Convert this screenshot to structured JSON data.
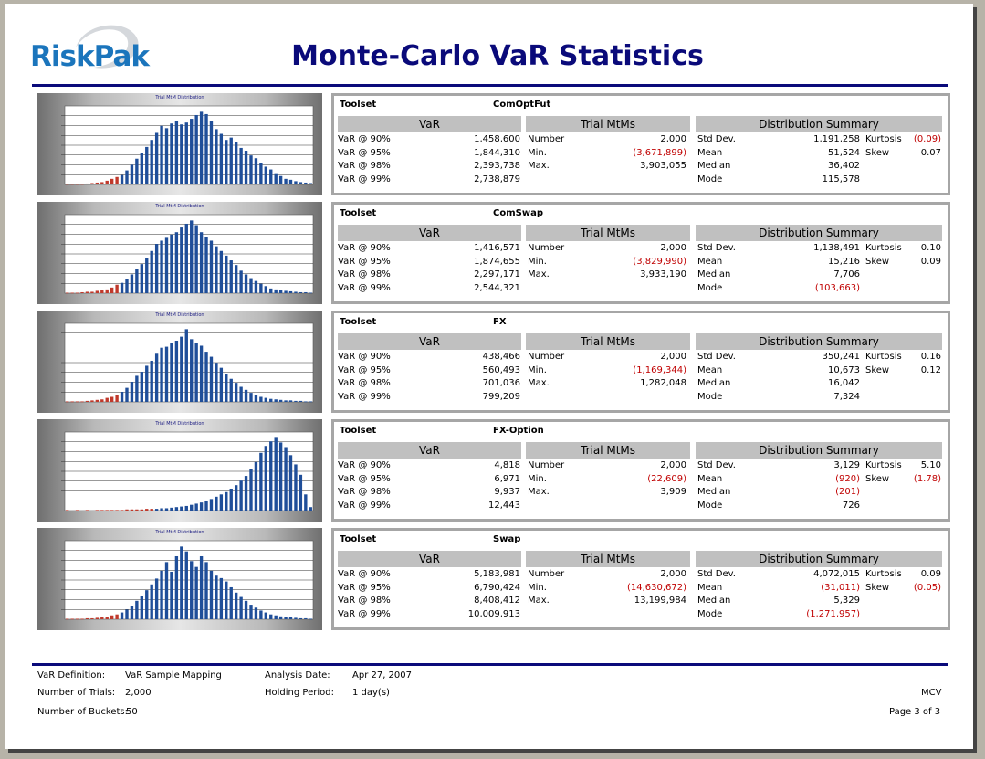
{
  "header": {
    "logo_text": "RiskPak",
    "title": "Monte-Carlo VaR Statistics"
  },
  "sections": [
    {
      "chart_title": "Trial MtM Distribution",
      "toolset_label": "Toolset",
      "toolset_name": "ComOptFut",
      "headers": {
        "var": "VaR",
        "trial": "Trial MtMs",
        "dist": "Distribution Summary"
      },
      "var_rows": [
        {
          "label": "VaR @ 90%",
          "value": "1,458,600"
        },
        {
          "label": "VaR @ 95%",
          "value": "1,844,310"
        },
        {
          "label": "VaR @ 98%",
          "value": "2,393,738"
        },
        {
          "label": "VaR @ 99%",
          "value": "2,738,879"
        }
      ],
      "trial_rows": [
        {
          "label": "Number",
          "value": "2,000",
          "neg": false
        },
        {
          "label": "Min.",
          "value": "(3,671,899)",
          "neg": true
        },
        {
          "label": "Max.",
          "value": "3,903,055",
          "neg": false
        }
      ],
      "dist_rows": [
        {
          "label": "Std Dev.",
          "value": "1,191,258",
          "neg": false
        },
        {
          "label": "Mean",
          "value": "51,524",
          "neg": false
        },
        {
          "label": "Median",
          "value": "36,402",
          "neg": false
        },
        {
          "label": "Mode",
          "value": "115,578",
          "neg": false
        }
      ],
      "moments": [
        {
          "label": "Kurtosis",
          "value": "(0.09)",
          "neg": true
        },
        {
          "label": "Skew",
          "value": "0.07",
          "neg": false
        }
      ],
      "bars": [
        1,
        1,
        1,
        1,
        2,
        3,
        4,
        5,
        8,
        12,
        16,
        20,
        30,
        42,
        55,
        68,
        80,
        95,
        110,
        125,
        120,
        130,
        135,
        128,
        132,
        140,
        148,
        155,
        150,
        135,
        118,
        108,
        95,
        100,
        90,
        78,
        72,
        62,
        56,
        45,
        38,
        32,
        24,
        18,
        12,
        10,
        7,
        5,
        4,
        3
      ],
      "red_count": 11
    },
    {
      "chart_title": "Trial MtM Distribution",
      "toolset_label": "Toolset",
      "toolset_name": "ComSwap",
      "headers": {
        "var": "VaR",
        "trial": "Trial MtMs",
        "dist": "Distribution Summary"
      },
      "var_rows": [
        {
          "label": "VaR @ 90%",
          "value": "1,416,571"
        },
        {
          "label": "VaR @ 95%",
          "value": "1,874,655"
        },
        {
          "label": "VaR @ 98%",
          "value": "2,297,171"
        },
        {
          "label": "VaR @ 99%",
          "value": "2,544,321"
        }
      ],
      "trial_rows": [
        {
          "label": "Number",
          "value": "2,000",
          "neg": false
        },
        {
          "label": "Min.",
          "value": "(3,829,990)",
          "neg": true
        },
        {
          "label": "Max.",
          "value": "3,933,190",
          "neg": false
        }
      ],
      "dist_rows": [
        {
          "label": "Std Dev.",
          "value": "1,138,491",
          "neg": false
        },
        {
          "label": "Mean",
          "value": "15,216",
          "neg": false
        },
        {
          "label": "Median",
          "value": "7,706",
          "neg": false
        },
        {
          "label": "Mode",
          "value": "(103,663)",
          "neg": true
        }
      ],
      "moments": [
        {
          "label": "Kurtosis",
          "value": "0.10",
          "neg": false
        },
        {
          "label": "Skew",
          "value": "0.09",
          "neg": false
        }
      ],
      "bars": [
        1,
        1,
        1,
        2,
        3,
        3,
        5,
        6,
        8,
        12,
        18,
        22,
        30,
        40,
        52,
        62,
        75,
        90,
        105,
        112,
        118,
        125,
        130,
        140,
        148,
        155,
        145,
        130,
        120,
        112,
        100,
        90,
        80,
        70,
        60,
        48,
        40,
        32,
        26,
        20,
        15,
        10,
        8,
        6,
        5,
        4,
        3,
        2,
        2,
        1
      ],
      "red_count": 11
    },
    {
      "chart_title": "Trial MtM Distribution",
      "toolset_label": "Toolset",
      "toolset_name": "FX",
      "headers": {
        "var": "VaR",
        "trial": "Trial MtMs",
        "dist": "Distribution Summary"
      },
      "var_rows": [
        {
          "label": "VaR @ 90%",
          "value": "438,466"
        },
        {
          "label": "VaR @ 95%",
          "value": "560,493"
        },
        {
          "label": "VaR @ 98%",
          "value": "701,036"
        },
        {
          "label": "VaR @ 99%",
          "value": "799,209"
        }
      ],
      "trial_rows": [
        {
          "label": "Number",
          "value": "2,000",
          "neg": false
        },
        {
          "label": "Min.",
          "value": "(1,169,344)",
          "neg": true
        },
        {
          "label": "Max.",
          "value": "1,282,048",
          "neg": false
        }
      ],
      "dist_rows": [
        {
          "label": "Std Dev.",
          "value": "350,241",
          "neg": false
        },
        {
          "label": "Mean",
          "value": "10,673",
          "neg": false
        },
        {
          "label": "Median",
          "value": "16,042",
          "neg": false
        },
        {
          "label": "Mode",
          "value": "7,324",
          "neg": false
        }
      ],
      "moments": [
        {
          "label": "Kurtosis",
          "value": "0.16",
          "neg": false
        },
        {
          "label": "Skew",
          "value": "0.12",
          "neg": false
        }
      ],
      "bars": [
        1,
        1,
        1,
        1,
        2,
        3,
        4,
        5,
        8,
        10,
        14,
        20,
        28,
        40,
        52,
        60,
        72,
        82,
        96,
        108,
        110,
        118,
        122,
        130,
        145,
        125,
        118,
        112,
        100,
        90,
        78,
        68,
        56,
        46,
        38,
        30,
        24,
        18,
        14,
        10,
        8,
        6,
        5,
        4,
        3,
        3,
        2,
        2,
        1,
        1
      ],
      "red_count": 11
    },
    {
      "chart_title": "Trial MtM Distribution",
      "toolset_label": "Toolset",
      "toolset_name": "FX-Option",
      "headers": {
        "var": "VaR",
        "trial": "Trial MtMs",
        "dist": "Distribution Summary"
      },
      "var_rows": [
        {
          "label": "VaR @ 90%",
          "value": "4,818"
        },
        {
          "label": "VaR @ 95%",
          "value": "6,971"
        },
        {
          "label": "VaR @ 98%",
          "value": "9,937"
        },
        {
          "label": "VaR @ 99%",
          "value": "12,443"
        }
      ],
      "trial_rows": [
        {
          "label": "Number",
          "value": "2,000",
          "neg": false
        },
        {
          "label": "Min.",
          "value": "(22,609)",
          "neg": true
        },
        {
          "label": "Max.",
          "value": "3,909",
          "neg": false
        }
      ],
      "dist_rows": [
        {
          "label": "Std Dev.",
          "value": "3,129",
          "neg": false
        },
        {
          "label": "Mean",
          "value": "(920)",
          "neg": true
        },
        {
          "label": "Median",
          "value": "(201)",
          "neg": true
        },
        {
          "label": "Mode",
          "value": "726",
          "neg": false
        }
      ],
      "moments": [
        {
          "label": "Kurtosis",
          "value": "5.10",
          "neg": false
        },
        {
          "label": "Skew",
          "value": "(1.78)",
          "neg": true
        }
      ],
      "bars": [
        1,
        0,
        1,
        0,
        1,
        0,
        1,
        1,
        1,
        1,
        1,
        1,
        2,
        2,
        2,
        2,
        3,
        3,
        3,
        4,
        4,
        5,
        6,
        7,
        8,
        10,
        12,
        14,
        16,
        20,
        24,
        28,
        32,
        38,
        44,
        52,
        60,
        72,
        84,
        100,
        112,
        120,
        126,
        118,
        110,
        96,
        80,
        62,
        28,
        6
      ],
      "red_count": 18
    },
    {
      "chart_title": "Trial MtM Distribution",
      "toolset_label": "Toolset",
      "toolset_name": "Swap",
      "headers": {
        "var": "VaR",
        "trial": "Trial MtMs",
        "dist": "Distribution Summary"
      },
      "var_rows": [
        {
          "label": "VaR @ 90%",
          "value": "5,183,981"
        },
        {
          "label": "VaR @ 95%",
          "value": "6,790,424"
        },
        {
          "label": "VaR @ 98%",
          "value": "8,408,412"
        },
        {
          "label": "VaR @ 99%",
          "value": "10,009,913"
        }
      ],
      "trial_rows": [
        {
          "label": "Number",
          "value": "2,000",
          "neg": false
        },
        {
          "label": "Min.",
          "value": "(14,630,672)",
          "neg": true
        },
        {
          "label": "Max.",
          "value": "13,199,984",
          "neg": false
        }
      ],
      "dist_rows": [
        {
          "label": "Std Dev.",
          "value": "4,072,015",
          "neg": false
        },
        {
          "label": "Mean",
          "value": "(31,011)",
          "neg": true
        },
        {
          "label": "Median",
          "value": "5,329",
          "neg": false
        },
        {
          "label": "Mode",
          "value": "(1,271,957)",
          "neg": true
        }
      ],
      "moments": [
        {
          "label": "Kurtosis",
          "value": "0.09",
          "neg": false
        },
        {
          "label": "Skew",
          "value": "(0.05)",
          "neg": true
        }
      ],
      "bars": [
        1,
        1,
        1,
        1,
        2,
        2,
        3,
        4,
        5,
        8,
        10,
        14,
        20,
        28,
        38,
        48,
        60,
        72,
        84,
        100,
        118,
        98,
        130,
        150,
        140,
        120,
        108,
        130,
        118,
        100,
        90,
        85,
        78,
        66,
        55,
        46,
        38,
        30,
        24,
        18,
        14,
        10,
        8,
        6,
        5,
        4,
        3,
        2,
        2,
        1
      ],
      "red_count": 11
    }
  ],
  "footer": {
    "var_def_label": "VaR Definition:",
    "var_def_value": "VaR Sample Mapping",
    "trials_label": "Number of Trials:",
    "trials_value": "2,000",
    "buckets_label": "Number of Buckets:",
    "buckets_value": "50",
    "analysis_label": "Analysis Date:",
    "analysis_value": "Apr 27, 2007",
    "holding_label": "Holding Period:",
    "holding_value": "1 day(s)",
    "code": "MCV",
    "page": "Page 3 of 3"
  },
  "colors": {
    "title": "#0a0a7a",
    "logo": "#1b75bc",
    "bar_blue": "#1f4e99",
    "bar_red": "#c0392b",
    "negative": "#c00000"
  }
}
